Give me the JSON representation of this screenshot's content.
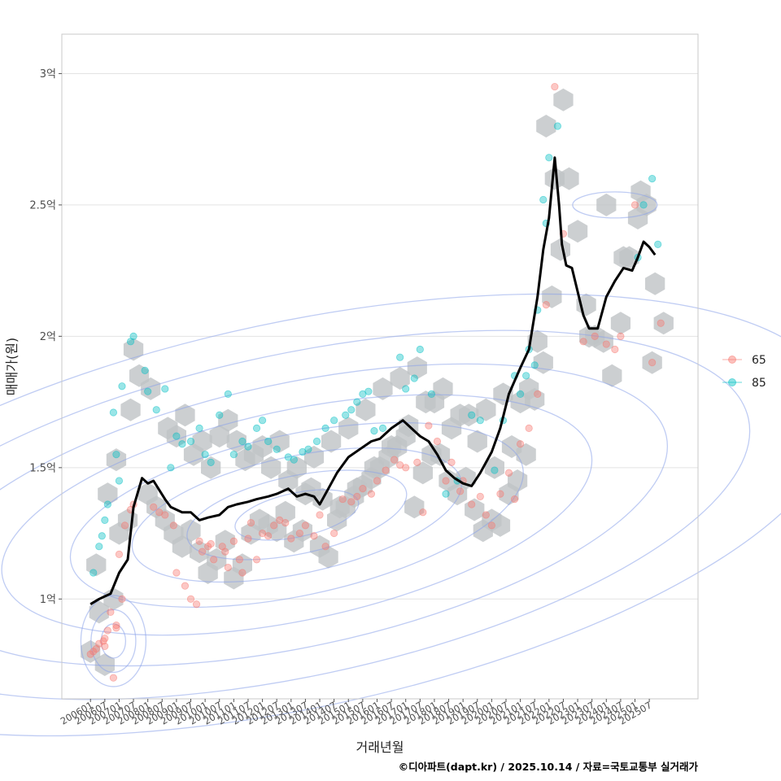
{
  "chart_data": {
    "type": "scatter",
    "xlabel": "거래년월",
    "ylabel": "매매가(원)",
    "caption": "©디아파트(dapt.kr) / 2025.10.14 / 자료=국토교통부 실거래가",
    "y_range": [
      6.2,
      31.5
    ],
    "y_ticks": [
      {
        "value": 10,
        "label": "1억"
      },
      {
        "value": 15,
        "label": "1.5억"
      },
      {
        "value": 20,
        "label": "2억"
      },
      {
        "value": 25,
        "label": "2.5억"
      },
      {
        "value": 30,
        "label": "3억"
      }
    ],
    "x_range": [
      2005.0,
      2027.2
    ],
    "x_ticks": [
      {
        "value": 2006.0,
        "label": "200601"
      },
      {
        "value": 2006.5,
        "label": "200607"
      },
      {
        "value": 2007.0,
        "label": "200701"
      },
      {
        "value": 2007.5,
        "label": "200707"
      },
      {
        "value": 2008.0,
        "label": "200801"
      },
      {
        "value": 2008.5,
        "label": "200807"
      },
      {
        "value": 2009.0,
        "label": "200901"
      },
      {
        "value": 2009.5,
        "label": "200907"
      },
      {
        "value": 2010.0,
        "label": "201001"
      },
      {
        "value": 2010.5,
        "label": "201007"
      },
      {
        "value": 2011.0,
        "label": "201101"
      },
      {
        "value": 2011.5,
        "label": "201107"
      },
      {
        "value": 2012.0,
        "label": "201201"
      },
      {
        "value": 2012.5,
        "label": "201207"
      },
      {
        "value": 2013.0,
        "label": "201301"
      },
      {
        "value": 2013.5,
        "label": "201307"
      },
      {
        "value": 2014.0,
        "label": "201401"
      },
      {
        "value": 2014.5,
        "label": "201407"
      },
      {
        "value": 2015.0,
        "label": "201501"
      },
      {
        "value": 2015.5,
        "label": "201507"
      },
      {
        "value": 2016.0,
        "label": "201601"
      },
      {
        "value": 2016.5,
        "label": "201607"
      },
      {
        "value": 2017.0,
        "label": "201701"
      },
      {
        "value": 2017.5,
        "label": "201707"
      },
      {
        "value": 2018.0,
        "label": "201801"
      },
      {
        "value": 2018.5,
        "label": "201807"
      },
      {
        "value": 2019.0,
        "label": "201901"
      },
      {
        "value": 2019.5,
        "label": "201907"
      },
      {
        "value": 2020.0,
        "label": "202001"
      },
      {
        "value": 2020.5,
        "label": "202007"
      },
      {
        "value": 2021.0,
        "label": "202101"
      },
      {
        "value": 2021.5,
        "label": "202107"
      },
      {
        "value": 2022.0,
        "label": "202201"
      },
      {
        "value": 2022.5,
        "label": "202207"
      },
      {
        "value": 2023.0,
        "label": "202301"
      },
      {
        "value": 2023.5,
        "label": "202307"
      },
      {
        "value": 2024.0,
        "label": "202401"
      },
      {
        "value": 2024.5,
        "label": "202407"
      },
      {
        "value": 2025.0,
        "label": "202501"
      },
      {
        "value": 2025.5,
        "label": "202507"
      }
    ],
    "legend": [
      {
        "label": "65",
        "color": "#F8766D"
      },
      {
        "label": "85",
        "color": "#00BFC4"
      }
    ],
    "colors": {
      "series_65": "#F8766D",
      "series_85": "#00BFC4",
      "trend": "#000000",
      "hexbin": "#bfc3c6",
      "contour": "#8aa3ea",
      "grid": "#e3e3e3",
      "frame": "#c8c8c8"
    },
    "trend_line": {
      "name": "moving average",
      "x": [
        2006.0,
        2006.3,
        2006.7,
        2007.0,
        2007.3,
        2007.5,
        2007.8,
        2008.0,
        2008.2,
        2008.6,
        2008.8,
        2009.2,
        2009.5,
        2009.8,
        2010.1,
        2010.5,
        2010.8,
        2011.1,
        2011.5,
        2011.8,
        2012.2,
        2012.5,
        2012.9,
        2013.2,
        2013.5,
        2013.8,
        2014.0,
        2014.3,
        2014.6,
        2015.0,
        2015.4,
        2015.8,
        2016.1,
        2016.5,
        2016.9,
        2017.2,
        2017.5,
        2017.8,
        2018.1,
        2018.4,
        2018.7,
        2019.0,
        2019.3,
        2019.6,
        2020.0,
        2020.3,
        2020.6,
        2021.0,
        2021.3,
        2021.6,
        2021.8,
        2022.0,
        2022.2,
        2022.35,
        2022.45,
        2022.6,
        2022.8,
        2023.2,
        2023.4,
        2023.7,
        2024.0,
        2024.3,
        2024.6,
        2024.9,
        2025.1,
        2025.3,
        2025.5,
        2025.7
      ],
      "y": [
        9.8,
        10.0,
        10.2,
        11.0,
        11.5,
        13.5,
        14.6,
        14.4,
        14.5,
        13.8,
        13.5,
        13.3,
        13.3,
        13.0,
        13.1,
        13.2,
        13.5,
        13.6,
        13.7,
        13.8,
        13.9,
        14.0,
        14.2,
        13.9,
        14.0,
        13.9,
        13.6,
        14.2,
        14.8,
        15.4,
        15.7,
        16.0,
        16.1,
        16.5,
        16.8,
        16.5,
        16.2,
        16.0,
        15.5,
        14.9,
        14.6,
        14.4,
        14.3,
        14.8,
        15.6,
        16.5,
        17.8,
        18.8,
        19.5,
        21.5,
        23.3,
        24.5,
        26.8,
        25.0,
        23.5,
        22.7,
        22.6,
        20.8,
        20.3,
        20.3,
        21.5,
        22.1,
        22.6,
        22.5,
        23.0,
        23.6,
        23.4,
        23.1
      ]
    },
    "series": [
      {
        "name": "65",
        "x": [
          2006.0,
          2006.1,
          2006.2,
          2006.3,
          2006.45,
          2006.5,
          2006.5,
          2006.6,
          2006.7,
          2006.8,
          2006.9,
          2006.9,
          2007.0,
          2007.1,
          2007.2,
          2007.4,
          2007.5,
          2008.2,
          2008.4,
          2008.6,
          2008.9,
          2009.0,
          2009.3,
          2009.5,
          2009.7,
          2009.8,
          2009.9,
          2010.1,
          2010.2,
          2010.3,
          2010.6,
          2010.7,
          2010.8,
          2011.0,
          2011.2,
          2011.3,
          2011.5,
          2011.6,
          2011.8,
          2012.0,
          2012.2,
          2012.4,
          2012.6,
          2012.8,
          2013.0,
          2013.3,
          2013.5,
          2013.8,
          2014.0,
          2014.2,
          2014.5,
          2014.8,
          2015.1,
          2015.3,
          2015.5,
          2015.8,
          2016.0,
          2016.3,
          2016.6,
          2016.8,
          2017.0,
          2017.4,
          2017.6,
          2017.8,
          2018.1,
          2018.4,
          2018.6,
          2018.9,
          2019.0,
          2019.3,
          2019.6,
          2019.8,
          2020.0,
          2020.3,
          2020.6,
          2020.8,
          2021.0,
          2021.3,
          2021.6,
          2021.9,
          2022.2,
          2022.5,
          2023.2,
          2023.6,
          2024.0,
          2024.3,
          2024.5,
          2025.0,
          2025.6,
          2025.9
        ],
        "y": [
          7.9,
          8.0,
          8.1,
          8.3,
          8.4,
          8.5,
          8.2,
          8.8,
          9.5,
          7.0,
          8.9,
          9.0,
          11.7,
          10.0,
          12.8,
          13.4,
          13.6,
          13.5,
          13.3,
          13.2,
          12.8,
          11.0,
          10.5,
          10.0,
          9.8,
          12.2,
          11.8,
          12.0,
          12.1,
          11.5,
          12.0,
          11.8,
          11.2,
          12.2,
          11.5,
          11.0,
          12.3,
          12.9,
          11.5,
          12.5,
          12.4,
          12.8,
          13.0,
          12.9,
          12.3,
          12.5,
          12.8,
          12.4,
          13.2,
          12.0,
          12.5,
          13.8,
          13.7,
          13.9,
          14.2,
          14.0,
          14.5,
          14.9,
          15.3,
          15.1,
          15.0,
          15.2,
          13.3,
          16.6,
          16.0,
          14.5,
          15.2,
          14.1,
          14.5,
          13.6,
          13.9,
          13.2,
          12.8,
          14.0,
          14.8,
          13.8,
          15.9,
          16.5,
          17.8,
          21.2,
          29.5,
          23.9,
          19.8,
          20.0,
          19.7,
          19.5,
          20.0,
          25.0,
          19.0,
          20.5
        ]
      },
      {
        "name": "85",
        "x": [
          2006.1,
          2006.3,
          2006.4,
          2006.5,
          2006.6,
          2006.8,
          2006.9,
          2007.0,
          2007.1,
          2007.4,
          2007.5,
          2007.9,
          2008.0,
          2008.3,
          2008.6,
          2008.8,
          2009.0,
          2009.2,
          2009.5,
          2009.8,
          2010.0,
          2010.2,
          2010.5,
          2010.8,
          2011.0,
          2011.3,
          2011.5,
          2011.8,
          2012.0,
          2012.2,
          2012.5,
          2012.9,
          2013.1,
          2013.4,
          2013.6,
          2013.9,
          2014.2,
          2014.5,
          2014.9,
          2015.1,
          2015.3,
          2015.5,
          2015.7,
          2015.9,
          2016.2,
          2016.8,
          2017.0,
          2017.3,
          2017.5,
          2017.9,
          2018.4,
          2018.8,
          2019.3,
          2019.6,
          2020.1,
          2020.4,
          2020.8,
          2021.0,
          2021.2,
          2021.3,
          2021.5,
          2021.6,
          2021.8,
          2021.9,
          2022.0,
          2022.3,
          2025.1,
          2025.3,
          2025.6,
          2025.8
        ],
        "y": [
          11.0,
          12.0,
          12.4,
          13.0,
          13.6,
          17.1,
          15.5,
          14.5,
          18.1,
          19.8,
          20.0,
          18.7,
          17.9,
          17.2,
          18.0,
          15.0,
          16.2,
          15.9,
          16.0,
          16.5,
          15.5,
          15.2,
          17.0,
          17.8,
          15.5,
          16.0,
          15.8,
          16.5,
          16.8,
          16.0,
          15.7,
          15.4,
          15.3,
          15.6,
          15.7,
          16.0,
          16.5,
          16.8,
          17.0,
          17.2,
          17.5,
          17.8,
          17.9,
          16.4,
          16.5,
          19.2,
          18.0,
          18.4,
          19.5,
          17.8,
          14.0,
          14.5,
          17.0,
          16.8,
          14.9,
          16.8,
          18.5,
          17.8,
          18.5,
          19.5,
          18.9,
          21.0,
          25.2,
          24.3,
          26.8,
          28.0,
          23.0,
          25.0,
          26.0,
          23.5
        ]
      }
    ],
    "hexbins": {
      "x": [
        2006.0,
        2006.3,
        2006.5,
        2006.8,
        2007.0,
        2007.3,
        2006.2,
        2006.6,
        2006.9,
        2007.4,
        2007.7,
        2008.0,
        2008.3,
        2008.6,
        2008.9,
        2009.2,
        2009.5,
        2009.8,
        2010.1,
        2010.4,
        2010.7,
        2011.0,
        2011.3,
        2011.6,
        2011.9,
        2012.2,
        2012.5,
        2012.8,
        2013.1,
        2013.4,
        2013.7,
        2014.0,
        2014.3,
        2014.6,
        2014.9,
        2015.2,
        2015.5,
        2015.8,
        2016.1,
        2016.4,
        2016.7,
        2017.0,
        2017.3,
        2017.6,
        2017.9,
        2018.2,
        2018.5,
        2018.8,
        2019.1,
        2019.4,
        2019.7,
        2020.0,
        2020.3,
        2020.6,
        2020.9,
        2021.2,
        2021.5,
        2021.8,
        2022.1,
        2022.4,
        2022.7,
        2023.0,
        2023.3,
        2023.6,
        2023.9,
        2024.2,
        2024.5,
        2024.8,
        2025.1,
        2025.4,
        2025.7,
        2026.0,
        2009.0,
        2009.6,
        2010.2,
        2010.8,
        2011.4,
        2012.0,
        2012.6,
        2013.2,
        2013.8,
        2014.4,
        2015.0,
        2015.6,
        2016.2,
        2016.8,
        2017.4,
        2018.0,
        2018.6,
        2019.2,
        2019.8,
        2020.4,
        2021.0,
        2021.6,
        2007.5,
        2008.1,
        2008.7,
        2009.3,
        2009.9,
        2010.5,
        2011.1,
        2011.7,
        2012.3,
        2012.9,
        2013.5,
        2014.1,
        2014.7,
        2015.3,
        2015.9,
        2016.5,
        2017.1,
        2017.7,
        2018.3,
        2018.9,
        2019.5,
        2020.1,
        2020.7,
        2021.3,
        2021.9,
        2022.2,
        2022.5,
        2023.4,
        2024.0,
        2024.6,
        2025.2,
        2025.6
      ],
      "y": [
        8.0,
        9.5,
        7.5,
        10.0,
        12.5,
        13.0,
        11.3,
        14.0,
        15.3,
        17.2,
        18.5,
        14.0,
        13.5,
        13.0,
        12.5,
        12.0,
        12.6,
        11.8,
        11.0,
        11.5,
        12.2,
        10.8,
        11.3,
        12.5,
        13.0,
        12.8,
        12.6,
        13.3,
        12.2,
        12.6,
        14.2,
        12.0,
        11.6,
        13.0,
        13.5,
        13.9,
        14.3,
        14.6,
        15.0,
        15.4,
        15.8,
        16.2,
        13.5,
        14.8,
        15.5,
        15.5,
        14.5,
        14.0,
        14.6,
        13.4,
        12.6,
        13.0,
        12.8,
        14.0,
        14.5,
        15.5,
        17.6,
        19.0,
        21.5,
        23.3,
        26.0,
        24.0,
        21.2,
        20.0,
        19.8,
        18.5,
        20.5,
        23.0,
        24.5,
        25.0,
        22.0,
        20.5,
        16.2,
        15.5,
        15.0,
        16.8,
        15.3,
        15.8,
        16.0,
        15.0,
        15.4,
        16.0,
        16.5,
        17.2,
        18.0,
        18.4,
        18.8,
        17.5,
        16.5,
        17.0,
        17.2,
        17.8,
        17.5,
        19.8,
        19.5,
        18.0,
        16.5,
        17.0,
        16.0,
        16.2,
        16.0,
        15.5,
        15.0,
        14.5,
        14.0,
        13.8,
        13.5,
        14.2,
        15.0,
        15.8,
        16.6,
        17.5,
        18.0,
        17.0,
        16.0,
        15.0,
        15.8,
        18.0,
        28.0,
        26.0,
        29.0,
        20.0,
        25.0,
        23.0,
        25.5,
        19.0
      ],
      "fill_opacity": 0.8
    }
  }
}
